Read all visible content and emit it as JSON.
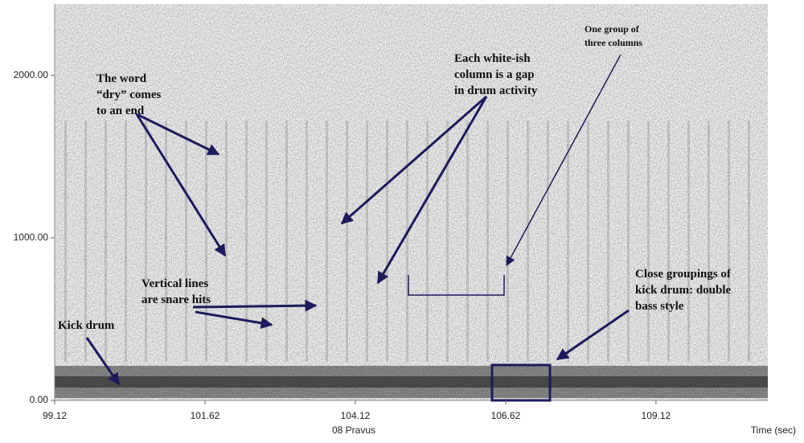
{
  "chart_data": {
    "type": "spectrogram",
    "xlabel": "Time (sec)",
    "caption": "08 Pravus",
    "xlim": [
      99.12,
      110.98
    ],
    "ylim": [
      0,
      2440
    ],
    "xticks": [
      99.12,
      101.62,
      104.12,
      106.62,
      109.12
    ],
    "yticks": [
      {
        "value": 0,
        "label": "0.00"
      },
      {
        "value": 1000,
        "label": "1000.00"
      },
      {
        "value": 2000,
        "label": "2000.00"
      }
    ],
    "annotations": [
      {
        "lines": [
          "The word",
          "“dry” comes",
          "to an end"
        ]
      },
      {
        "lines": [
          "Each white-ish",
          "column is a gap",
          "in drum activity"
        ]
      },
      {
        "lines": [
          "One group of",
          "three columns"
        ]
      },
      {
        "lines": [
          "Vertical lines",
          "are snare hits"
        ]
      },
      {
        "lines": [
          "Kick drum"
        ]
      },
      {
        "lines": [
          "Close groupings of",
          "kick drum: double",
          "bass style"
        ]
      }
    ]
  }
}
